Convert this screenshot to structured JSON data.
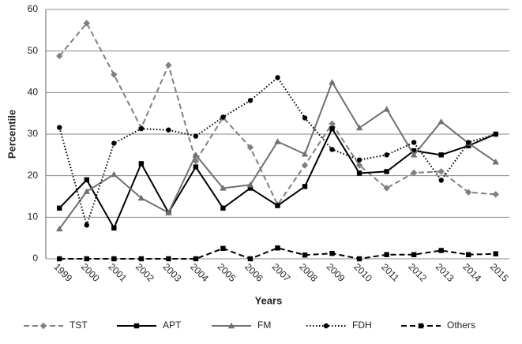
{
  "chart_data": {
    "type": "line",
    "x_label": "Years",
    "y_label": "Percentile",
    "categories": [
      "1999",
      "2000",
      "2001",
      "2002",
      "2003",
      "2004",
      "2005",
      "2006",
      "2007",
      "2008",
      "2009",
      "2010",
      "2011",
      "2012",
      "2013",
      "2014",
      "2015"
    ],
    "ylim": [
      0,
      60
    ],
    "yticks": [
      0,
      10,
      20,
      30,
      40,
      50,
      60
    ],
    "grid": true,
    "legend": "bottom",
    "series": [
      {
        "name": "TST",
        "color": "#808080",
        "dash": "dashed",
        "marker": "diamond",
        "values": [
          48.8,
          56.7,
          44.3,
          31.5,
          46.6,
          23.5,
          34.0,
          26.8,
          13.0,
          22.5,
          32.5,
          22.5,
          17.0,
          20.7,
          21.0,
          16.0,
          15.5
        ]
      },
      {
        "name": "APT",
        "color": "#000000",
        "dash": "solid",
        "marker": "square",
        "values": [
          12.2,
          19.0,
          7.4,
          22.9,
          11.1,
          22.1,
          12.2,
          17.0,
          12.8,
          17.4,
          31.3,
          20.6,
          21.0,
          26.0,
          25.0,
          27.2,
          30.0
        ]
      },
      {
        "name": "FM",
        "color": "#707070",
        "dash": "solid",
        "marker": "triangle",
        "values": [
          7.2,
          16.2,
          20.3,
          14.6,
          11.1,
          25.0,
          17.0,
          17.8,
          28.2,
          25.2,
          42.5,
          31.5,
          36.0,
          25.0,
          33.0,
          27.8,
          23.3
        ]
      },
      {
        "name": "FDH",
        "color": "#000000",
        "dash": "dotted",
        "marker": "circle",
        "values": [
          31.6,
          8.1,
          27.8,
          31.3,
          31.0,
          29.5,
          34.1,
          38.1,
          43.6,
          33.9,
          26.3,
          23.8,
          25.0,
          28.0,
          18.9,
          28.0,
          30.0
        ]
      },
      {
        "name": "Others",
        "color": "#000000",
        "dash": "dashed",
        "marker": "square",
        "values": [
          0,
          0,
          0,
          0,
          0,
          0,
          2.5,
          0,
          2.6,
          0.9,
          1.3,
          0,
          1.0,
          1.0,
          2.0,
          1.0,
          1.2
        ]
      }
    ]
  }
}
